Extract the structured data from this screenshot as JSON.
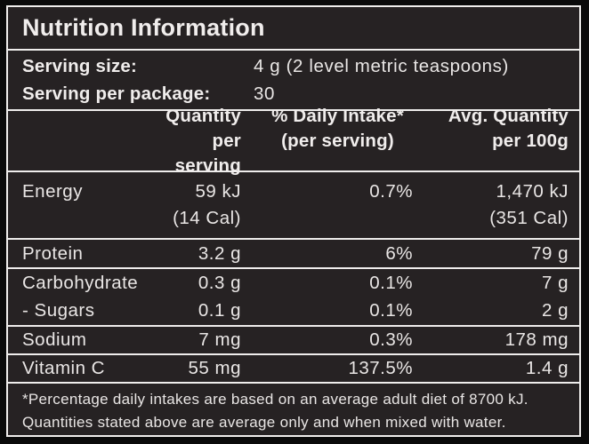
{
  "title": "Nutrition Information",
  "serving_info": {
    "rows": [
      {
        "label": "Serving size:",
        "value": "4 g (2 level metric teaspoons)"
      },
      {
        "label": "Serving per package:",
        "value": "30"
      }
    ]
  },
  "table": {
    "header": {
      "quantity_line1": "Quantity",
      "quantity_line2": "per serving",
      "daily_line1": "% Daily Intake*",
      "daily_line2": "(per serving)",
      "avg_line1": "Avg. Quantity",
      "avg_line2": "per 100g"
    },
    "rows": [
      {
        "name": "Energy",
        "qty1": "59 kJ",
        "qty2": "(14 Cal)",
        "daily": "0.7%",
        "avg1": "1,470 kJ",
        "avg2": "(351 Cal)"
      },
      {
        "name": "Protein",
        "qty1": "3.2 g",
        "daily": "6%",
        "avg1": "79 g"
      },
      {
        "name": "Carbohydrate",
        "qty1": "0.3 g",
        "daily": "0.1%",
        "avg1": "7 g"
      },
      {
        "name": "- Sugars",
        "qty1": "0.1 g",
        "daily": "0.1%",
        "avg1": "2 g"
      },
      {
        "name": "Sodium",
        "qty1": "7 mg",
        "daily": "0.3%",
        "avg1": "178 mg"
      },
      {
        "name": "Vitamin C",
        "qty1": "55 mg",
        "daily": "137.5%",
        "avg1": "1.4 g"
      }
    ]
  },
  "footnotes": [
    "*Percentage daily intakes are based on an average adult diet of 8700 kJ.",
    "Quantities stated above are average only and when mixed with water."
  ],
  "colors": {
    "panel_background": "#262223",
    "outer_background": "#0a0a0a",
    "text": "#f0edec",
    "border": "#efedec"
  }
}
